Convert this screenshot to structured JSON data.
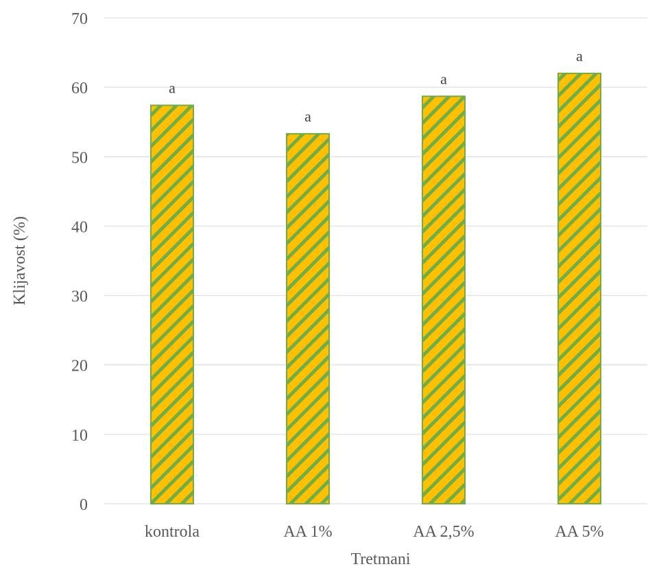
{
  "chart_data": {
    "type": "bar",
    "title": "",
    "xlabel": "Tretmani",
    "ylabel": "Klijavost (%)",
    "categories": [
      "kontrola",
      "AA 1%",
      "AA 2,5%",
      "AA 5%"
    ],
    "values": [
      57.4,
      53.3,
      58.7,
      62.0
    ],
    "data_labels": [
      "a",
      "a",
      "a",
      "a"
    ],
    "ylim": [
      0,
      70
    ],
    "yticks": [
      0,
      10,
      20,
      30,
      40,
      50,
      60,
      70
    ],
    "grid": true,
    "legend": "none",
    "colors": {
      "bar_fill": "#ffc000",
      "bar_stripe": "#70ad47",
      "bar_border": "#70ad47",
      "grid": "#d9d9d9",
      "text": "#595959"
    }
  }
}
